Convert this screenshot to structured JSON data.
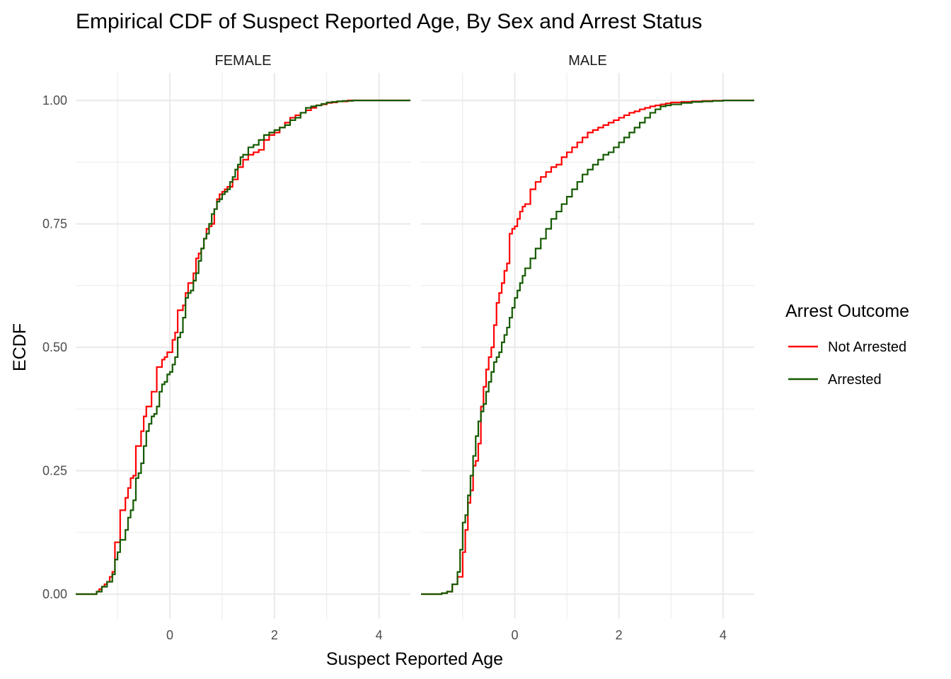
{
  "chart_data": {
    "type": "line",
    "subtype": "ecdf-step",
    "title": "Empirical CDF of Suspect Reported Age, By Sex and Arrest Status",
    "xlabel": "Suspect Reported Age",
    "ylabel": "ECDF",
    "xlim": [
      -1.8,
      4.6
    ],
    "ylim": [
      -0.05,
      1.05
    ],
    "x_ticks": [
      0,
      2,
      4
    ],
    "x_tick_labels": [
      "0",
      "2",
      "4"
    ],
    "y_ticks": [
      0,
      0.25,
      0.5,
      0.75,
      1
    ],
    "y_tick_labels": [
      "0.00",
      "0.25",
      "0.50",
      "0.75",
      "1.00"
    ],
    "grid": true,
    "legend": {
      "title": "Arrest Outcome",
      "position": "right",
      "entries": [
        {
          "label": "Not Arrested",
          "color": "#ff0000"
        },
        {
          "label": "Arrested",
          "color": "#145a00"
        }
      ]
    },
    "panels": [
      {
        "strip_label": "FEMALE",
        "series": [
          {
            "name": "Not Arrested",
            "color": "#ff0000",
            "x": [
              -1.8,
              -1.4,
              -1.35,
              -1.3,
              -1.25,
              -1.2,
              -1.15,
              -1.1,
              -1.05,
              -1.0,
              -0.95,
              -0.9,
              -0.85,
              -0.8,
              -0.75,
              -0.7,
              -0.65,
              -0.6,
              -0.55,
              -0.5,
              -0.45,
              -0.4,
              -0.35,
              -0.3,
              -0.25,
              -0.2,
              -0.15,
              -0.1,
              -0.05,
              0.0,
              0.05,
              0.1,
              0.15,
              0.2,
              0.25,
              0.3,
              0.35,
              0.4,
              0.45,
              0.5,
              0.55,
              0.6,
              0.65,
              0.7,
              0.75,
              0.8,
              0.85,
              0.9,
              0.95,
              1.0,
              1.05,
              1.1,
              1.2,
              1.3,
              1.4,
              1.5,
              1.6,
              1.7,
              1.8,
              1.9,
              2.0,
              2.1,
              2.2,
              2.3,
              2.4,
              2.5,
              2.6,
              2.7,
              2.8,
              2.9,
              3.0,
              3.1,
              3.2,
              3.3,
              3.4,
              4.0,
              4.6
            ],
            "y": [
              0,
              0.005,
              0.01,
              0.015,
              0.02,
              0.025,
              0.035,
              0.045,
              0.105,
              0.105,
              0.17,
              0.17,
              0.195,
              0.215,
              0.235,
              0.24,
              0.3,
              0.3,
              0.33,
              0.36,
              0.38,
              0.38,
              0.41,
              0.41,
              0.46,
              0.46,
              0.475,
              0.48,
              0.49,
              0.49,
              0.515,
              0.53,
              0.575,
              0.575,
              0.585,
              0.61,
              0.63,
              0.63,
              0.65,
              0.68,
              0.69,
              0.7,
              0.72,
              0.74,
              0.745,
              0.75,
              0.78,
              0.8,
              0.81,
              0.815,
              0.82,
              0.825,
              0.84,
              0.865,
              0.88,
              0.89,
              0.895,
              0.9,
              0.92,
              0.93,
              0.935,
              0.945,
              0.955,
              0.965,
              0.97,
              0.975,
              0.98,
              0.985,
              0.99,
              0.992,
              0.995,
              0.996,
              0.998,
              0.998,
              1.0,
              1.0,
              1.0
            ]
          },
          {
            "name": "Arrested",
            "color": "#145a00",
            "x": [
              -1.8,
              -1.4,
              -1.3,
              -1.2,
              -1.1,
              -1.05,
              -1.0,
              -0.95,
              -0.9,
              -0.85,
              -0.8,
              -0.75,
              -0.7,
              -0.65,
              -0.6,
              -0.55,
              -0.5,
              -0.45,
              -0.4,
              -0.35,
              -0.3,
              -0.25,
              -0.2,
              -0.15,
              -0.1,
              -0.05,
              0.0,
              0.05,
              0.1,
              0.15,
              0.2,
              0.25,
              0.3,
              0.35,
              0.4,
              0.45,
              0.5,
              0.55,
              0.6,
              0.65,
              0.7,
              0.75,
              0.8,
              0.85,
              0.9,
              0.95,
              1.0,
              1.05,
              1.1,
              1.15,
              1.2,
              1.25,
              1.3,
              1.35,
              1.4,
              1.5,
              1.6,
              1.7,
              1.8,
              1.9,
              2.0,
              2.1,
              2.2,
              2.3,
              2.4,
              2.5,
              2.6,
              2.7,
              2.8,
              2.9,
              3.0,
              3.1,
              3.2,
              3.3,
              3.5,
              3.8,
              4.6
            ],
            "y": [
              0,
              0.005,
              0.015,
              0.025,
              0.04,
              0.07,
              0.085,
              0.11,
              0.11,
              0.13,
              0.155,
              0.17,
              0.19,
              0.235,
              0.245,
              0.265,
              0.3,
              0.33,
              0.345,
              0.36,
              0.365,
              0.38,
              0.41,
              0.425,
              0.43,
              0.445,
              0.45,
              0.465,
              0.48,
              0.52,
              0.53,
              0.56,
              0.6,
              0.61,
              0.615,
              0.635,
              0.65,
              0.675,
              0.7,
              0.72,
              0.73,
              0.75,
              0.77,
              0.78,
              0.795,
              0.8,
              0.81,
              0.815,
              0.82,
              0.835,
              0.845,
              0.86,
              0.87,
              0.885,
              0.89,
              0.905,
              0.91,
              0.92,
              0.93,
              0.935,
              0.94,
              0.945,
              0.95,
              0.96,
              0.965,
              0.975,
              0.985,
              0.988,
              0.99,
              0.993,
              0.996,
              0.997,
              0.998,
              0.999,
              1.0,
              1.0,
              1.0
            ]
          }
        ]
      },
      {
        "strip_label": "MALE",
        "series": [
          {
            "name": "Not Arrested",
            "color": "#ff0000",
            "x": [
              -1.8,
              -1.4,
              -1.3,
              -1.2,
              -1.1,
              -1.0,
              -0.95,
              -0.9,
              -0.85,
              -0.8,
              -0.75,
              -0.7,
              -0.65,
              -0.6,
              -0.55,
              -0.5,
              -0.45,
              -0.4,
              -0.35,
              -0.3,
              -0.25,
              -0.2,
              -0.15,
              -0.1,
              -0.05,
              0.0,
              0.05,
              0.1,
              0.15,
              0.2,
              0.3,
              0.4,
              0.5,
              0.6,
              0.7,
              0.8,
              0.9,
              1.0,
              1.1,
              1.2,
              1.3,
              1.4,
              1.5,
              1.6,
              1.7,
              1.8,
              1.9,
              2.0,
              2.1,
              2.2,
              2.3,
              2.4,
              2.5,
              2.6,
              2.7,
              2.8,
              2.9,
              3.0,
              3.2,
              3.4,
              3.6,
              3.8,
              4.0,
              4.2,
              4.6
            ],
            "y": [
              0,
              0.002,
              0.005,
              0.02,
              0.035,
              0.085,
              0.13,
              0.185,
              0.21,
              0.26,
              0.27,
              0.305,
              0.38,
              0.42,
              0.455,
              0.48,
              0.5,
              0.545,
              0.59,
              0.61,
              0.63,
              0.655,
              0.67,
              0.73,
              0.74,
              0.745,
              0.76,
              0.775,
              0.785,
              0.79,
              0.82,
              0.835,
              0.845,
              0.855,
              0.865,
              0.87,
              0.885,
              0.895,
              0.905,
              0.915,
              0.925,
              0.935,
              0.94,
              0.945,
              0.95,
              0.955,
              0.96,
              0.965,
              0.97,
              0.975,
              0.978,
              0.982,
              0.985,
              0.988,
              0.99,
              0.992,
              0.994,
              0.996,
              0.997,
              0.998,
              0.999,
              0.9995,
              1.0,
              1.0,
              1.0
            ]
          },
          {
            "name": "Arrested",
            "color": "#145a00",
            "x": [
              -1.8,
              -1.4,
              -1.3,
              -1.2,
              -1.1,
              -1.05,
              -1.0,
              -0.95,
              -0.9,
              -0.85,
              -0.8,
              -0.75,
              -0.7,
              -0.65,
              -0.6,
              -0.55,
              -0.5,
              -0.45,
              -0.4,
              -0.35,
              -0.3,
              -0.25,
              -0.2,
              -0.15,
              -0.1,
              -0.05,
              0.0,
              0.05,
              0.1,
              0.15,
              0.2,
              0.3,
              0.4,
              0.5,
              0.6,
              0.7,
              0.8,
              0.9,
              1.0,
              1.1,
              1.2,
              1.3,
              1.4,
              1.5,
              1.6,
              1.7,
              1.8,
              1.9,
              2.0,
              2.1,
              2.2,
              2.3,
              2.4,
              2.5,
              2.6,
              2.7,
              2.8,
              2.9,
              3.0,
              3.2,
              3.4,
              3.6,
              3.8,
              4.0,
              4.6
            ],
            "y": [
              0,
              0.002,
              0.005,
              0.02,
              0.045,
              0.09,
              0.145,
              0.16,
              0.2,
              0.24,
              0.28,
              0.32,
              0.35,
              0.37,
              0.385,
              0.41,
              0.43,
              0.45,
              0.47,
              0.48,
              0.49,
              0.51,
              0.525,
              0.54,
              0.56,
              0.58,
              0.6,
              0.615,
              0.63,
              0.645,
              0.66,
              0.68,
              0.7,
              0.72,
              0.74,
              0.76,
              0.775,
              0.79,
              0.805,
              0.82,
              0.835,
              0.85,
              0.86,
              0.87,
              0.88,
              0.89,
              0.895,
              0.905,
              0.915,
              0.925,
              0.935,
              0.945,
              0.955,
              0.965,
              0.975,
              0.982,
              0.988,
              0.99,
              0.992,
              0.995,
              0.997,
              0.998,
              0.999,
              1.0,
              1.0
            ]
          }
        ]
      }
    ]
  }
}
